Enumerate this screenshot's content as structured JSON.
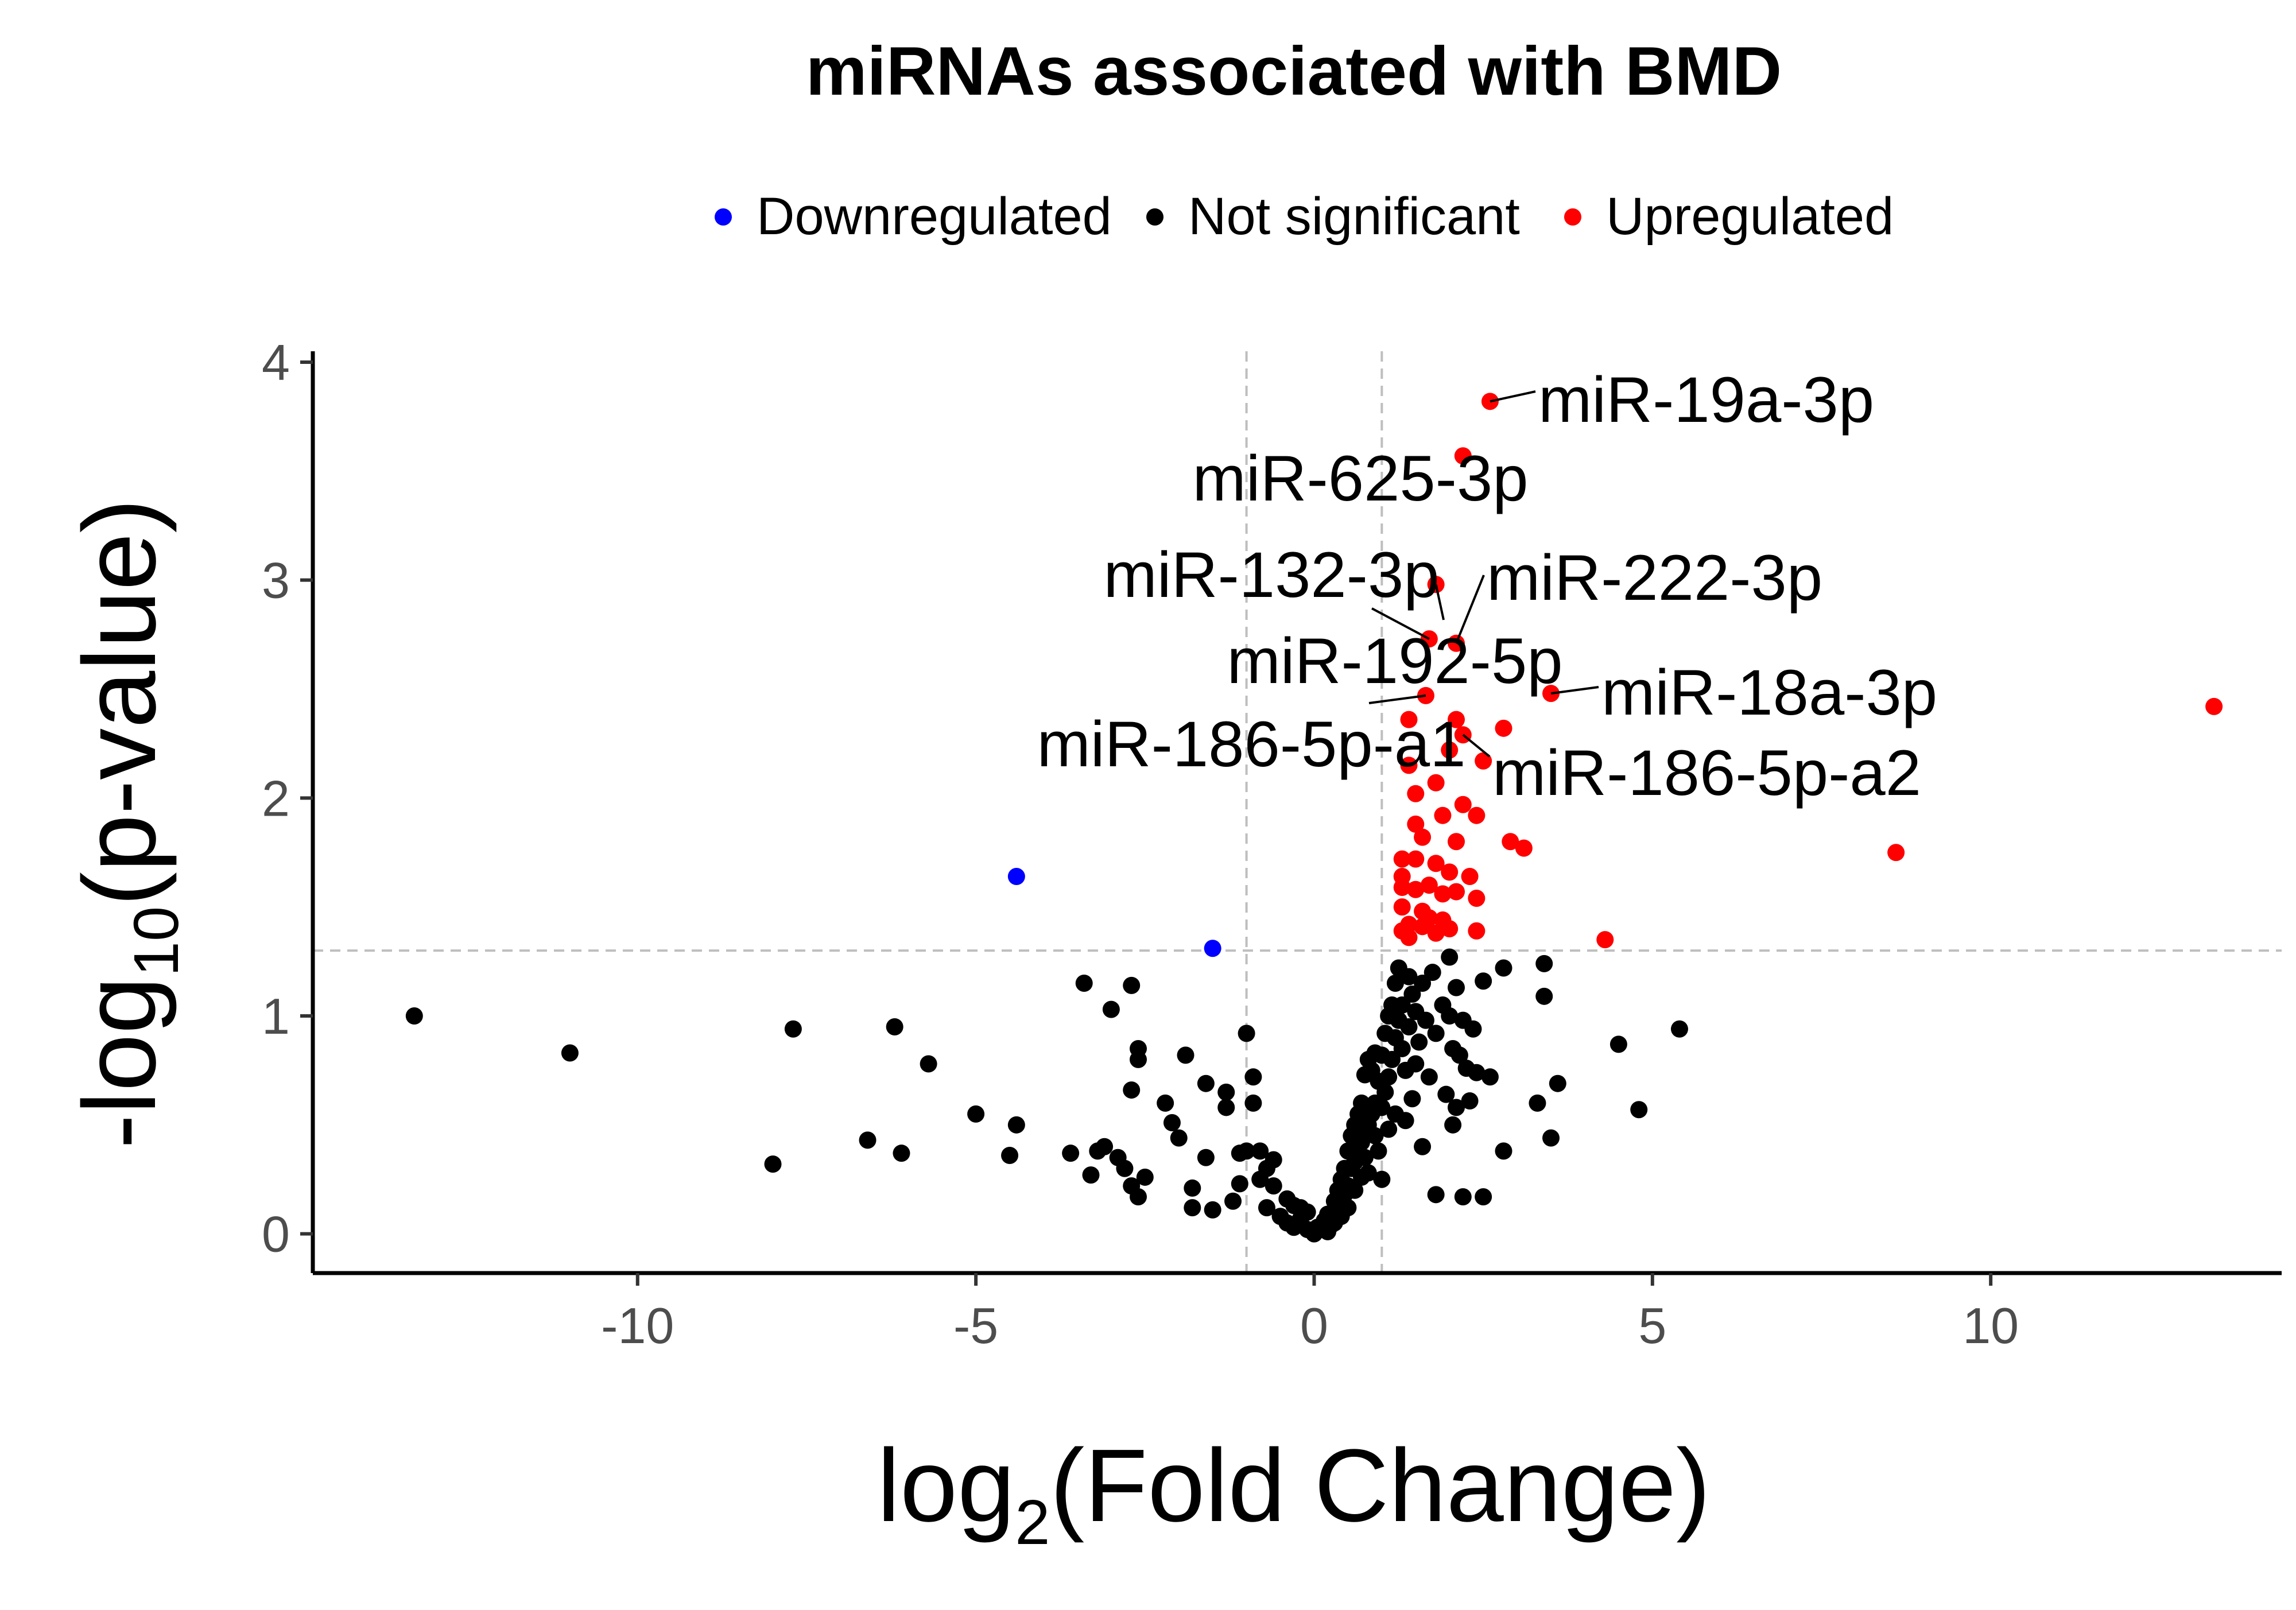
{
  "chart_data": {
    "type": "scatter",
    "title": "miRNAs associated with BMD",
    "xlabel": {
      "base": "log",
      "sub": "2",
      "rest": "(Fold Change)"
    },
    "ylabel": {
      "prefix": "-log",
      "sub": "10",
      "rest": "(p-value)"
    },
    "xlim": [
      -14.8,
      14.3
    ],
    "ylim": [
      -0.18,
      4.05
    ],
    "xticks": [
      -10,
      -5,
      0,
      5,
      10
    ],
    "xtick_labels": [
      "-10",
      "-5",
      "0",
      "5",
      "10"
    ],
    "yticks": [
      0,
      1,
      2,
      3,
      4
    ],
    "ytick_labels": [
      "0",
      "1",
      "2",
      "3",
      "4"
    ],
    "grid": false,
    "threshold_lines": {
      "x": [
        -1,
        1
      ],
      "y": [
        1.3
      ]
    },
    "legend_position": "top",
    "colors": {
      "Downregulated": "#0000ff",
      "Not significant": "#000000",
      "Upregulated": "#ff0000",
      "threshold": "#bebebe"
    },
    "series": [
      {
        "name": "Downregulated",
        "points": [
          [
            -4.4,
            1.64
          ],
          [
            -1.5,
            1.31
          ]
        ]
      },
      {
        "name": "Not significant",
        "points": [
          [
            -13.3,
            1.0
          ],
          [
            -11.0,
            0.83
          ],
          [
            -7.7,
            0.94
          ],
          [
            -8.0,
            0.32
          ],
          [
            -6.6,
            0.43
          ],
          [
            -6.2,
            0.95
          ],
          [
            -6.1,
            0.37
          ],
          [
            -5.7,
            0.78
          ],
          [
            -5.0,
            0.55
          ],
          [
            -4.5,
            0.36
          ],
          [
            -4.4,
            0.5
          ],
          [
            -3.6,
            0.37
          ],
          [
            -3.4,
            1.15
          ],
          [
            -3.3,
            0.27
          ],
          [
            -3.2,
            0.38
          ],
          [
            -3.1,
            0.4
          ],
          [
            -3.0,
            1.03
          ],
          [
            -2.9,
            0.35
          ],
          [
            -2.8,
            0.3
          ],
          [
            -2.7,
            1.14
          ],
          [
            -2.7,
            0.66
          ],
          [
            -2.7,
            0.22
          ],
          [
            -2.6,
            0.8
          ],
          [
            -2.6,
            0.85
          ],
          [
            -2.6,
            0.17
          ],
          [
            -2.5,
            0.26
          ],
          [
            -2.2,
            0.6
          ],
          [
            -2.1,
            0.51
          ],
          [
            -2.0,
            0.44
          ],
          [
            -1.9,
            0.82
          ],
          [
            -1.8,
            0.21
          ],
          [
            -1.8,
            0.12
          ],
          [
            -1.6,
            0.69
          ],
          [
            -1.6,
            0.35
          ],
          [
            -1.5,
            0.11
          ],
          [
            -1.3,
            0.65
          ],
          [
            -1.3,
            0.58
          ],
          [
            -1.2,
            0.15
          ],
          [
            -1.1,
            0.37
          ],
          [
            -1.1,
            0.23
          ],
          [
            -1.0,
            0.38
          ],
          [
            -1.0,
            0.92
          ],
          [
            -0.9,
            0.72
          ],
          [
            -0.9,
            0.6
          ],
          [
            -0.8,
            0.25
          ],
          [
            -0.8,
            0.38
          ],
          [
            -0.7,
            0.3
          ],
          [
            -0.7,
            0.12
          ],
          [
            -0.6,
            0.34
          ],
          [
            -0.6,
            0.22
          ],
          [
            -0.5,
            0.08
          ],
          [
            -0.4,
            0.16
          ],
          [
            -0.4,
            0.05
          ],
          [
            -0.3,
            0.13
          ],
          [
            -0.3,
            0.03
          ],
          [
            -0.2,
            0.07
          ],
          [
            -0.2,
            0.12
          ],
          [
            -0.1,
            0.02
          ],
          [
            -0.1,
            0.1
          ],
          [
            0.0,
            0.0
          ],
          [
            0.05,
            0.03
          ],
          [
            0.1,
            0.02
          ],
          [
            0.15,
            0.06
          ],
          [
            0.2,
            0.01
          ],
          [
            0.2,
            0.09
          ],
          [
            0.25,
            0.04
          ],
          [
            0.3,
            0.15
          ],
          [
            0.3,
            0.05
          ],
          [
            0.35,
            0.2
          ],
          [
            0.35,
            0.12
          ],
          [
            0.4,
            0.25
          ],
          [
            0.4,
            0.08
          ],
          [
            0.45,
            0.3
          ],
          [
            0.45,
            0.18
          ],
          [
            0.5,
            0.38
          ],
          [
            0.5,
            0.22
          ],
          [
            0.5,
            0.12
          ],
          [
            0.55,
            0.45
          ],
          [
            0.55,
            0.3
          ],
          [
            0.6,
            0.5
          ],
          [
            0.6,
            0.33
          ],
          [
            0.6,
            0.2
          ],
          [
            0.65,
            0.55
          ],
          [
            0.65,
            0.4
          ],
          [
            0.7,
            0.6
          ],
          [
            0.7,
            0.42
          ],
          [
            0.7,
            0.26
          ],
          [
            0.75,
            0.73
          ],
          [
            0.75,
            0.48
          ],
          [
            0.75,
            0.35
          ],
          [
            0.8,
            0.8
          ],
          [
            0.8,
            0.5
          ],
          [
            0.8,
            0.28
          ],
          [
            0.85,
            0.75
          ],
          [
            0.85,
            0.55
          ],
          [
            0.9,
            0.83
          ],
          [
            0.9,
            0.45
          ],
          [
            0.9,
            0.6
          ],
          [
            0.95,
            0.7
          ],
          [
            0.95,
            0.38
          ],
          [
            1.0,
            0.82
          ],
          [
            1.0,
            0.58
          ],
          [
            1.0,
            0.25
          ],
          [
            1.05,
            0.92
          ],
          [
            1.05,
            0.65
          ],
          [
            1.1,
            1.0
          ],
          [
            1.1,
            0.72
          ],
          [
            1.1,
            0.48
          ],
          [
            1.15,
            1.05
          ],
          [
            1.15,
            0.8
          ],
          [
            1.2,
            1.15
          ],
          [
            1.2,
            0.9
          ],
          [
            1.2,
            0.55
          ],
          [
            1.25,
            1.22
          ],
          [
            1.25,
            0.98
          ],
          [
            1.3,
            1.05
          ],
          [
            1.3,
            0.85
          ],
          [
            1.35,
            0.75
          ],
          [
            1.35,
            0.52
          ],
          [
            1.4,
            1.18
          ],
          [
            1.4,
            0.95
          ],
          [
            1.45,
            1.1
          ],
          [
            1.45,
            0.62
          ],
          [
            1.5,
            1.02
          ],
          [
            1.5,
            0.78
          ],
          [
            1.55,
            0.88
          ],
          [
            1.6,
            1.15
          ],
          [
            1.6,
            0.4
          ],
          [
            1.65,
            0.98
          ],
          [
            1.7,
            0.72
          ],
          [
            1.75,
            1.2
          ],
          [
            1.8,
            0.92
          ],
          [
            1.8,
            0.18
          ],
          [
            1.9,
            1.05
          ],
          [
            1.95,
            0.64
          ],
          [
            2.0,
            1.27
          ],
          [
            2.0,
            1.0
          ],
          [
            2.05,
            0.85
          ],
          [
            2.05,
            0.5
          ],
          [
            2.1,
            1.13
          ],
          [
            2.1,
            0.58
          ],
          [
            2.15,
            0.82
          ],
          [
            2.2,
            0.98
          ],
          [
            2.2,
            0.17
          ],
          [
            2.25,
            0.76
          ],
          [
            2.3,
            0.61
          ],
          [
            2.35,
            0.94
          ],
          [
            2.4,
            0.74
          ],
          [
            2.5,
            1.16
          ],
          [
            2.5,
            0.17
          ],
          [
            2.6,
            0.72
          ],
          [
            2.8,
            1.22
          ],
          [
            2.8,
            0.38
          ],
          [
            3.3,
            0.6
          ],
          [
            3.4,
            1.24
          ],
          [
            3.4,
            1.09
          ],
          [
            3.5,
            0.44
          ],
          [
            3.6,
            0.69
          ],
          [
            4.5,
            0.87
          ],
          [
            4.8,
            0.57
          ],
          [
            5.4,
            0.94
          ]
        ]
      },
      {
        "name": "Upregulated",
        "points": [
          [
            2.6,
            3.82
          ],
          [
            2.2,
            3.57
          ],
          [
            1.8,
            2.98
          ],
          [
            1.7,
            2.73
          ],
          [
            2.1,
            2.71
          ],
          [
            3.5,
            2.48
          ],
          [
            1.65,
            2.47
          ],
          [
            1.4,
            2.36
          ],
          [
            2.1,
            2.36
          ],
          [
            2.8,
            2.32
          ],
          [
            2.2,
            2.29
          ],
          [
            2.0,
            2.22
          ],
          [
            2.5,
            2.17
          ],
          [
            1.4,
            2.15
          ],
          [
            1.8,
            2.07
          ],
          [
            1.5,
            2.02
          ],
          [
            2.2,
            1.97
          ],
          [
            2.4,
            1.92
          ],
          [
            1.9,
            1.92
          ],
          [
            1.5,
            1.88
          ],
          [
            1.6,
            1.82
          ],
          [
            2.1,
            1.8
          ],
          [
            2.9,
            1.8
          ],
          [
            3.1,
            1.77
          ],
          [
            1.3,
            1.72
          ],
          [
            1.5,
            1.72
          ],
          [
            1.8,
            1.7
          ],
          [
            2.0,
            1.66
          ],
          [
            2.3,
            1.64
          ],
          [
            1.3,
            1.64
          ],
          [
            1.7,
            1.6
          ],
          [
            1.5,
            1.58
          ],
          [
            1.3,
            1.59
          ],
          [
            2.1,
            1.57
          ],
          [
            1.9,
            1.56
          ],
          [
            2.4,
            1.54
          ],
          [
            1.3,
            1.5
          ],
          [
            1.6,
            1.48
          ],
          [
            1.7,
            1.45
          ],
          [
            1.9,
            1.44
          ],
          [
            1.4,
            1.42
          ],
          [
            1.6,
            1.41
          ],
          [
            2.0,
            1.4
          ],
          [
            1.3,
            1.39
          ],
          [
            1.8,
            1.38
          ],
          [
            1.4,
            1.36
          ],
          [
            2.4,
            1.39
          ],
          [
            4.3,
            1.35
          ],
          [
            8.6,
            1.75
          ],
          [
            13.3,
            2.42
          ]
        ]
      }
    ],
    "annotations": [
      {
        "text": "miR-19a-3p",
        "x": 2.6,
        "y": 3.82
      },
      {
        "text": "miR-625-3p",
        "x": 2.2,
        "y": 3.57
      },
      {
        "text": "miR-132-3p",
        "x": 1.8,
        "y": 2.98
      },
      {
        "text": "miR-222-3p",
        "x": 2.1,
        "y": 2.71
      },
      {
        "text": "miR-192-5p",
        "x": 1.7,
        "y": 2.73
      },
      {
        "text": "miR-18a-3p",
        "x": 3.5,
        "y": 2.48
      },
      {
        "text": "miR-186-5p-a1",
        "x": 1.65,
        "y": 2.47
      },
      {
        "text": "miR-186-5p-a2",
        "x": 2.2,
        "y": 2.29
      }
    ]
  }
}
